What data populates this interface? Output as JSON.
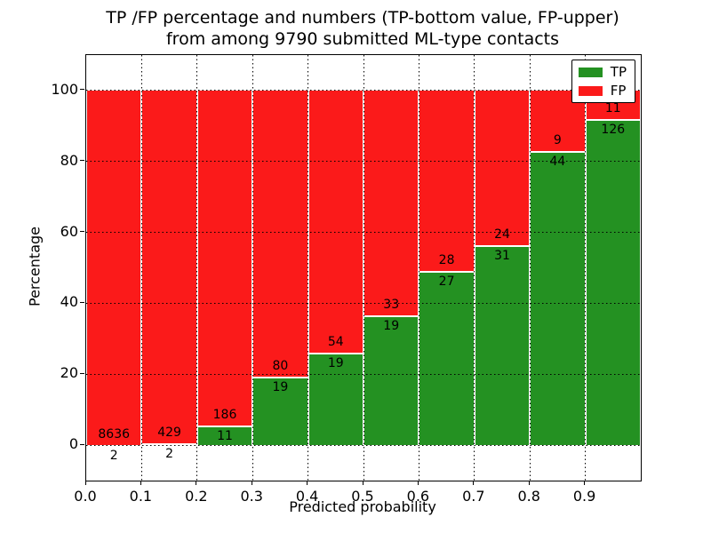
{
  "title": {
    "line1": "TP /FP percentage and numbers (TP-bottom value, FP-upper)",
    "line2": "from among 9790 submitted ML-type contacts"
  },
  "axes": {
    "xlabel": "Predicted probability",
    "ylabel": "Percentage",
    "x_tick_labels": [
      "0.0",
      "0.1",
      "0.2",
      "0.3",
      "0.4",
      "0.5",
      "0.6",
      "0.7",
      "0.8",
      "0.9"
    ],
    "y_tick_labels": [
      "0",
      "20",
      "40",
      "60",
      "80",
      "100"
    ]
  },
  "legend": {
    "items": [
      {
        "label": "TP",
        "color": "#249122"
      },
      {
        "label": "FP",
        "color": "#fb1a1a"
      }
    ]
  },
  "chart_data": {
    "type": "bar",
    "stacked": true,
    "units": "percent",
    "title": "TP /FP percentage and numbers (TP-bottom value, FP-upper) from among 9790 submitted ML-type contacts",
    "xlabel": "Predicted probability",
    "ylabel": "Percentage",
    "xlim": [
      0.0,
      1.0
    ],
    "ylim": [
      -10,
      110
    ],
    "grid": true,
    "legend_position": "upper right",
    "total_contacts": 9790,
    "bin_width": 0.1,
    "categories": [
      "0.0-0.1",
      "0.1-0.2",
      "0.2-0.3",
      "0.3-0.4",
      "0.4-0.5",
      "0.5-0.6",
      "0.6-0.7",
      "0.7-0.8",
      "0.8-0.9",
      "0.9-1.0"
    ],
    "bin_left_edges": [
      0.0,
      0.1,
      0.2,
      0.3,
      0.4,
      0.5,
      0.6,
      0.7,
      0.8,
      0.9
    ],
    "series": [
      {
        "name": "TP",
        "color": "#249122",
        "counts": [
          2,
          2,
          11,
          19,
          19,
          19,
          27,
          31,
          44,
          126
        ],
        "pct": [
          0.02,
          0.46,
          5.6,
          19.2,
          26.0,
          36.5,
          49.1,
          56.4,
          83.0,
          92.0
        ]
      },
      {
        "name": "FP",
        "color": "#fb1a1a",
        "counts": [
          8636,
          429,
          186,
          80,
          54,
          33,
          28,
          24,
          9,
          11
        ],
        "pct": [
          99.98,
          99.54,
          94.4,
          80.8,
          74.0,
          63.5,
          50.9,
          43.6,
          17.0,
          8.0
        ]
      }
    ]
  }
}
